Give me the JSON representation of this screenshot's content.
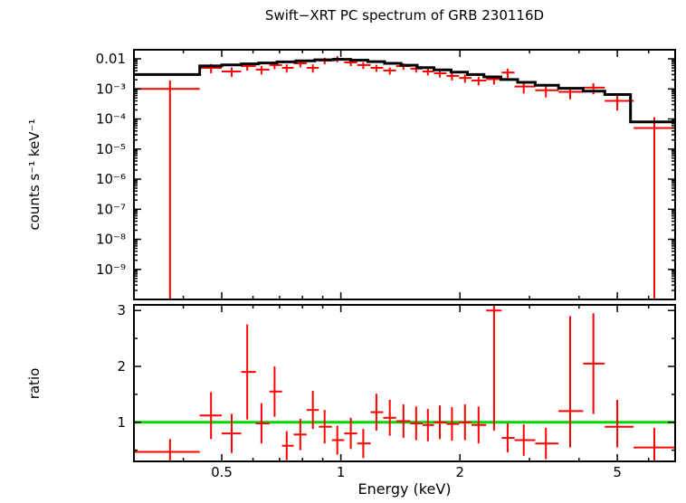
{
  "chart_data": {
    "type": "line",
    "title": "Swift−XRT PC spectrum of GRB 230116D",
    "xlabel": "Energy (keV)",
    "legend": "none",
    "grid": false,
    "x_axis": {
      "scale": "log",
      "min": 0.3,
      "max": 7.0,
      "major_ticks": [
        0.5,
        1,
        2,
        5
      ],
      "tick_labels": [
        "0.5",
        "1",
        "2",
        "5"
      ],
      "minor_ticks": [
        0.4,
        0.6,
        0.7,
        0.8,
        0.9,
        3,
        4,
        6
      ]
    },
    "panels": [
      {
        "name": "spectrum",
        "ylabel": "counts s⁻¹ keV⁻¹",
        "y_axis": {
          "scale": "log",
          "min": 1e-10,
          "max": 0.02,
          "major_ticks": [
            0.01,
            0.001,
            0.0001,
            1e-05,
            1e-06,
            1e-07,
            1e-08,
            1e-09
          ],
          "tick_labels": [
            "0.01",
            "10⁻³",
            "10⁻⁴",
            "10⁻⁵",
            "10⁻⁶",
            "10⁻⁷",
            "10⁻⁸",
            "10⁻⁹"
          ]
        },
        "series": [
          {
            "name": "spectrum-data",
            "type": "errorbar",
            "color": "#ff0000",
            "points_format": [
              "E",
              "E_lo",
              "E_hi",
              "value",
              "value_lo",
              "value_hi"
            ],
            "points": [
              [
                0.37,
                0.3,
                0.44,
                0.001,
                1e-10,
                0.0019
              ],
              [
                0.47,
                0.44,
                0.5,
                0.005,
                0.0033,
                0.0067
              ],
              [
                0.53,
                0.5,
                0.56,
                0.0038,
                0.0025,
                0.0051
              ],
              [
                0.58,
                0.56,
                0.61,
                0.0057,
                0.004,
                0.0074
              ],
              [
                0.63,
                0.61,
                0.66,
                0.0044,
                0.003,
                0.0058
              ],
              [
                0.68,
                0.66,
                0.71,
                0.0062,
                0.0045,
                0.0079
              ],
              [
                0.73,
                0.71,
                0.76,
                0.005,
                0.0035,
                0.0065
              ],
              [
                0.79,
                0.76,
                0.82,
                0.0071,
                0.0052,
                0.009
              ],
              [
                0.85,
                0.82,
                0.88,
                0.005,
                0.0035,
                0.0065
              ],
              [
                0.91,
                0.88,
                0.95,
                0.0087,
                0.0065,
                0.0109
              ],
              [
                0.98,
                0.95,
                1.02,
                0.01,
                0.0077,
                0.0123
              ],
              [
                1.06,
                1.02,
                1.1,
                0.0076,
                0.0057,
                0.0095
              ],
              [
                1.14,
                1.1,
                1.19,
                0.0062,
                0.0046,
                0.0078
              ],
              [
                1.23,
                1.19,
                1.28,
                0.005,
                0.0037,
                0.0063
              ],
              [
                1.33,
                1.28,
                1.38,
                0.0041,
                0.003,
                0.0052
              ],
              [
                1.44,
                1.38,
                1.5,
                0.0057,
                0.0043,
                0.0071
              ],
              [
                1.55,
                1.5,
                1.61,
                0.0047,
                0.0035,
                0.0059
              ],
              [
                1.66,
                1.61,
                1.72,
                0.0038,
                0.0028,
                0.0048
              ],
              [
                1.78,
                1.72,
                1.85,
                0.0033,
                0.0024,
                0.0042
              ],
              [
                1.91,
                1.85,
                1.99,
                0.0027,
                0.0019,
                0.0035
              ],
              [
                2.06,
                1.99,
                2.14,
                0.0023,
                0.0016,
                0.003
              ],
              [
                2.23,
                2.14,
                2.33,
                0.0019,
                0.0013,
                0.0025
              ],
              [
                2.44,
                2.33,
                2.55,
                0.0021,
                0.0014,
                0.0028
              ],
              [
                2.64,
                2.55,
                2.75,
                0.0035,
                0.0023,
                0.0047
              ],
              [
                2.9,
                2.75,
                3.1,
                0.0012,
                0.0007,
                0.0017
              ],
              [
                3.3,
                3.1,
                3.55,
                0.0009,
                0.00052,
                0.00128
              ],
              [
                3.8,
                3.55,
                4.1,
                0.0008,
                0.00045,
                0.00115
              ],
              [
                4.35,
                4.1,
                4.65,
                0.0011,
                0.00066,
                0.00154
              ],
              [
                5.0,
                4.65,
                5.5,
                0.0004,
                0.00019,
                0.00061
              ],
              [
                6.2,
                5.5,
                7.0,
                5e-05,
                1e-10,
                0.000115
              ]
            ]
          },
          {
            "name": "model-line",
            "type": "steps",
            "color": "#000000",
            "steps_format": [
              "E_lo",
              "E_hi",
              "value"
            ],
            "steps": [
              [
                0.3,
                0.44,
                0.003
              ],
              [
                0.44,
                0.5,
                0.0058
              ],
              [
                0.5,
                0.56,
                0.0063
              ],
              [
                0.56,
                0.62,
                0.0068
              ],
              [
                0.62,
                0.69,
                0.0073
              ],
              [
                0.69,
                0.77,
                0.0079
              ],
              [
                0.77,
                0.86,
                0.0086
              ],
              [
                0.86,
                0.96,
                0.0093
              ],
              [
                0.96,
                1.06,
                0.0096
              ],
              [
                1.06,
                1.17,
                0.009
              ],
              [
                1.17,
                1.29,
                0.0081
              ],
              [
                1.29,
                1.42,
                0.0071
              ],
              [
                1.42,
                1.56,
                0.0061
              ],
              [
                1.56,
                1.72,
                0.0051
              ],
              [
                1.72,
                1.9,
                0.0043
              ],
              [
                1.9,
                2.09,
                0.0036
              ],
              [
                2.09,
                2.3,
                0.003
              ],
              [
                2.3,
                2.54,
                0.0025
              ],
              [
                2.54,
                2.8,
                0.00205
              ],
              [
                2.8,
                3.1,
                0.00165
              ],
              [
                3.1,
                3.55,
                0.00132
              ],
              [
                3.55,
                4.1,
                0.00105
              ],
              [
                4.1,
                4.65,
                0.00084
              ],
              [
                4.65,
                5.4,
                0.00065
              ],
              [
                5.4,
                7.0,
                8e-05
              ]
            ]
          }
        ]
      },
      {
        "name": "ratio",
        "ylabel": "ratio",
        "y_axis": {
          "scale": "linear",
          "min": 0.3,
          "max": 3.1,
          "major_ticks": [
            1,
            2,
            3
          ],
          "tick_labels": [
            "1",
            "2",
            "3"
          ],
          "minor_ticks": [
            0.5,
            1.5,
            2.5
          ]
        },
        "series": [
          {
            "name": "unity-line",
            "type": "hline",
            "color": "#00d500",
            "y": 1
          },
          {
            "name": "ratio-data",
            "type": "errorbar",
            "color": "#ff0000",
            "points_format": [
              "E",
              "E_lo",
              "E_hi",
              "value",
              "value_lo",
              "value_hi"
            ],
            "points": [
              [
                0.37,
                0.3,
                0.44,
                0.47,
                0.25,
                0.7
              ],
              [
                0.47,
                0.44,
                0.5,
                1.12,
                0.7,
                1.54
              ],
              [
                0.53,
                0.5,
                0.56,
                0.8,
                0.45,
                1.15
              ],
              [
                0.58,
                0.56,
                0.61,
                1.9,
                1.05,
                2.75
              ],
              [
                0.63,
                0.61,
                0.66,
                0.98,
                0.62,
                1.34
              ],
              [
                0.68,
                0.66,
                0.71,
                1.55,
                1.1,
                2.0
              ],
              [
                0.73,
                0.71,
                0.76,
                0.58,
                0.32,
                0.84
              ],
              [
                0.79,
                0.76,
                0.82,
                0.78,
                0.5,
                1.06
              ],
              [
                0.85,
                0.82,
                0.88,
                1.22,
                0.88,
                1.56
              ],
              [
                0.91,
                0.88,
                0.95,
                0.92,
                0.62,
                1.22
              ],
              [
                0.98,
                0.95,
                1.02,
                0.68,
                0.42,
                0.94
              ],
              [
                1.06,
                1.02,
                1.1,
                0.8,
                0.52,
                1.08
              ],
              [
                1.14,
                1.1,
                1.19,
                0.62,
                0.36,
                0.88
              ],
              [
                1.23,
                1.19,
                1.28,
                1.18,
                0.85,
                1.51
              ],
              [
                1.33,
                1.28,
                1.38,
                1.08,
                0.76,
                1.4
              ],
              [
                1.44,
                1.38,
                1.5,
                1.02,
                0.72,
                1.32
              ],
              [
                1.55,
                1.5,
                1.61,
                0.98,
                0.68,
                1.28
              ],
              [
                1.66,
                1.61,
                1.72,
                0.95,
                0.66,
                1.24
              ],
              [
                1.78,
                1.72,
                1.85,
                1.0,
                0.7,
                1.3
              ],
              [
                1.91,
                1.85,
                1.99,
                0.97,
                0.67,
                1.27
              ],
              [
                2.06,
                1.99,
                2.14,
                1.0,
                0.68,
                1.32
              ],
              [
                2.23,
                2.14,
                2.33,
                0.95,
                0.62,
                1.28
              ],
              [
                2.44,
                2.33,
                2.55,
                3.0,
                0.85,
                3.1
              ],
              [
                2.64,
                2.55,
                2.75,
                0.72,
                0.46,
                0.98
              ],
              [
                2.9,
                2.75,
                3.1,
                0.68,
                0.4,
                0.96
              ],
              [
                3.3,
                3.1,
                3.55,
                0.62,
                0.34,
                0.9
              ],
              [
                3.8,
                3.55,
                4.1,
                1.2,
                0.55,
                2.9
              ],
              [
                4.35,
                4.1,
                4.65,
                2.05,
                1.15,
                2.95
              ],
              [
                5.0,
                4.65,
                5.5,
                0.92,
                0.55,
                1.4
              ],
              [
                6.2,
                5.5,
                7.0,
                0.55,
                0.2,
                0.9
              ]
            ]
          }
        ]
      }
    ]
  }
}
